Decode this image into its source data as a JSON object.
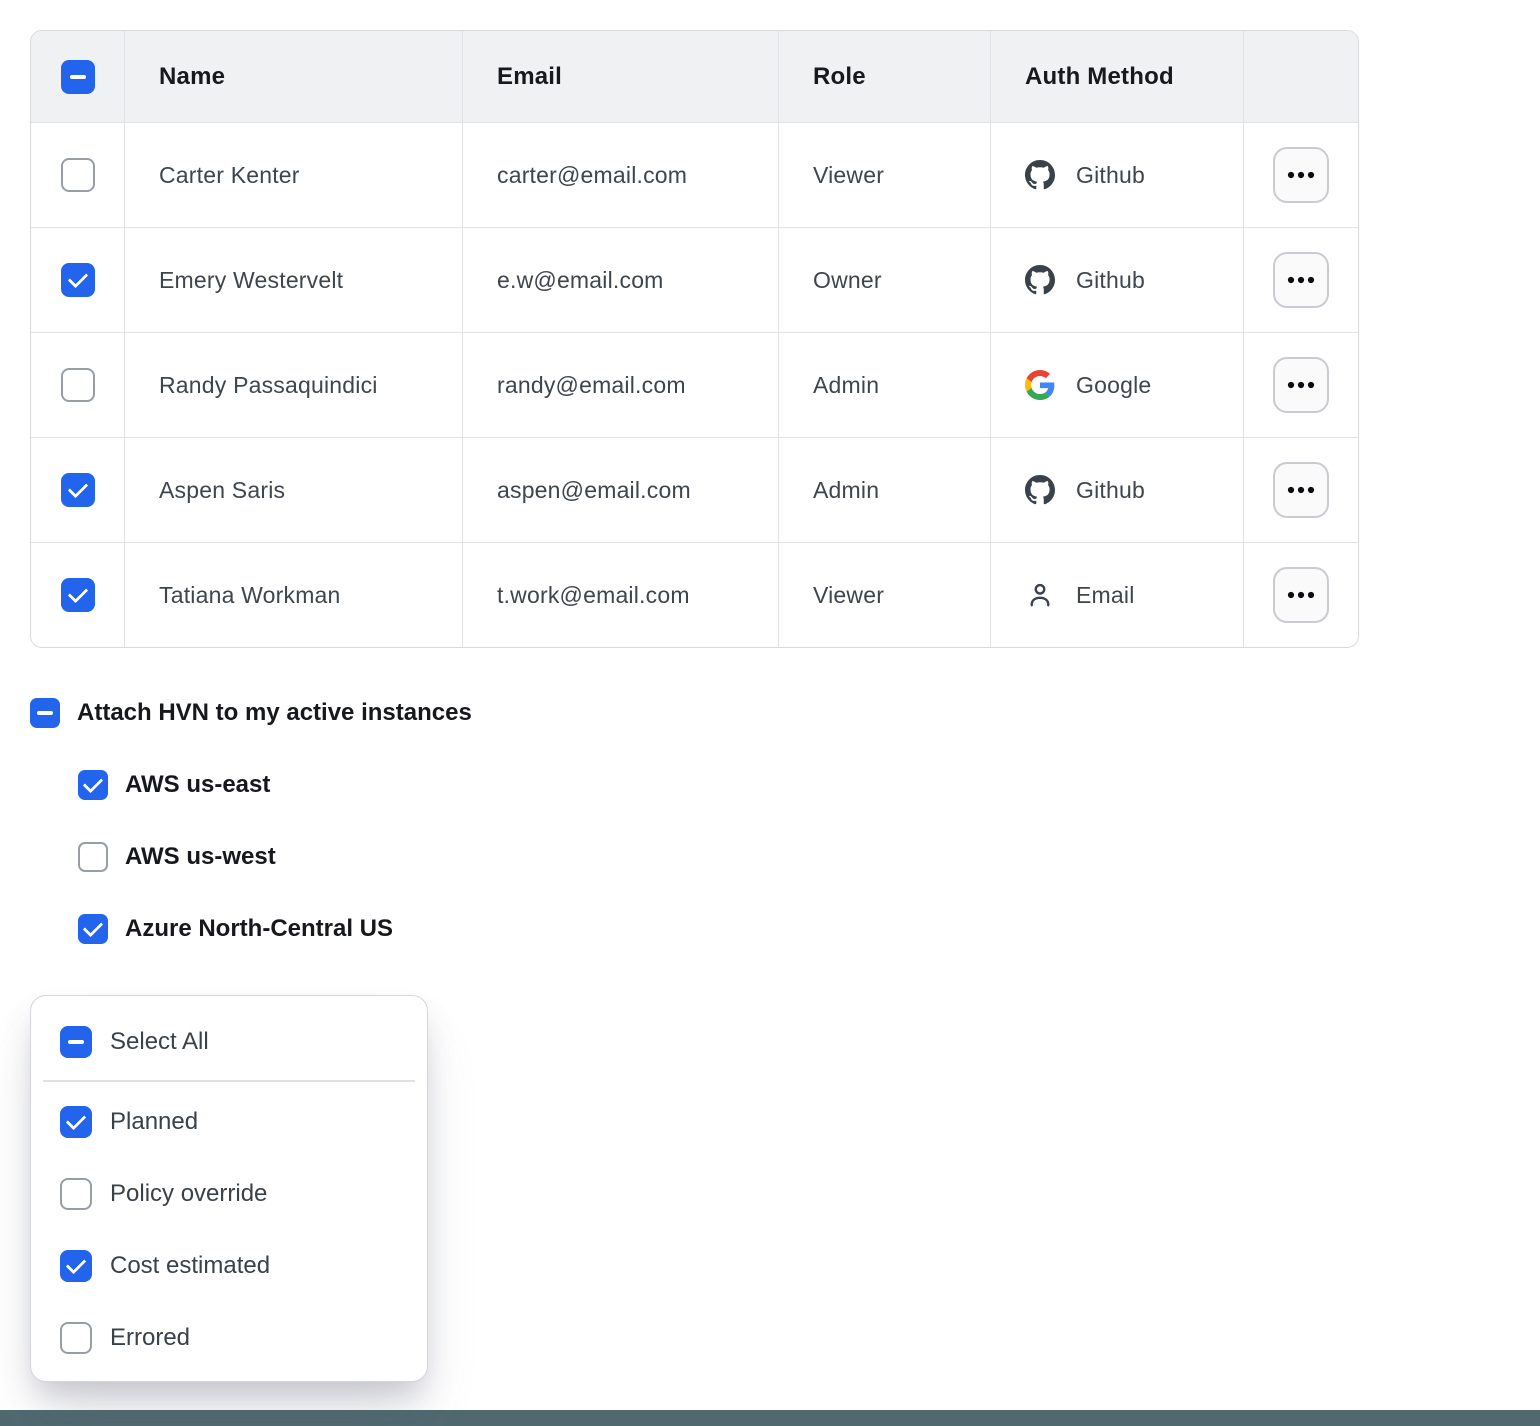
{
  "table": {
    "headers": {
      "name": "Name",
      "email": "Email",
      "role": "Role",
      "auth": "Auth Method"
    },
    "header_checkbox": "indeterminate",
    "row_action_icon": "ellipsis-icon",
    "rows": [
      {
        "name": "Carter Kenter",
        "email": "carter@email.com",
        "role": "Viewer",
        "auth": "Github",
        "auth_icon": "github-icon",
        "checkbox": "unchecked"
      },
      {
        "name": "Emery Westervelt",
        "email": "e.w@email.com",
        "role": "Owner",
        "auth": "Github",
        "auth_icon": "github-icon",
        "checkbox": "checked"
      },
      {
        "name": "Randy Passaquindici",
        "email": "randy@email.com",
        "role": "Admin",
        "auth": "Google",
        "auth_icon": "google-icon",
        "checkbox": "unchecked"
      },
      {
        "name": "Aspen Saris",
        "email": "aspen@email.com",
        "role": "Admin",
        "auth": "Github",
        "auth_icon": "github-icon",
        "checkbox": "checked"
      },
      {
        "name": "Tatiana Workman",
        "email": "t.work@email.com",
        "role": "Viewer",
        "auth": "Email",
        "auth_icon": "user-icon",
        "checkbox": "checked"
      }
    ]
  },
  "hvn": {
    "title": "Attach HVN to my active instances",
    "checkbox": "indeterminate",
    "options": [
      {
        "label": "AWS us-east",
        "checkbox": "checked"
      },
      {
        "label": "AWS us-west",
        "checkbox": "unchecked"
      },
      {
        "label": "Azure North-Central US",
        "checkbox": "checked"
      }
    ]
  },
  "filter_card": {
    "select_all": {
      "label": "Select All",
      "checkbox": "indeterminate"
    },
    "options": [
      {
        "label": "Planned",
        "checkbox": "checked"
      },
      {
        "label": "Policy override",
        "checkbox": "unchecked"
      },
      {
        "label": "Cost estimated",
        "checkbox": "checked"
      },
      {
        "label": "Errored",
        "checkbox": "unchecked"
      }
    ]
  },
  "colors": {
    "accent": "#2264EC",
    "footer_bar": "#50696F",
    "header_bg": "#F0F1F3"
  }
}
